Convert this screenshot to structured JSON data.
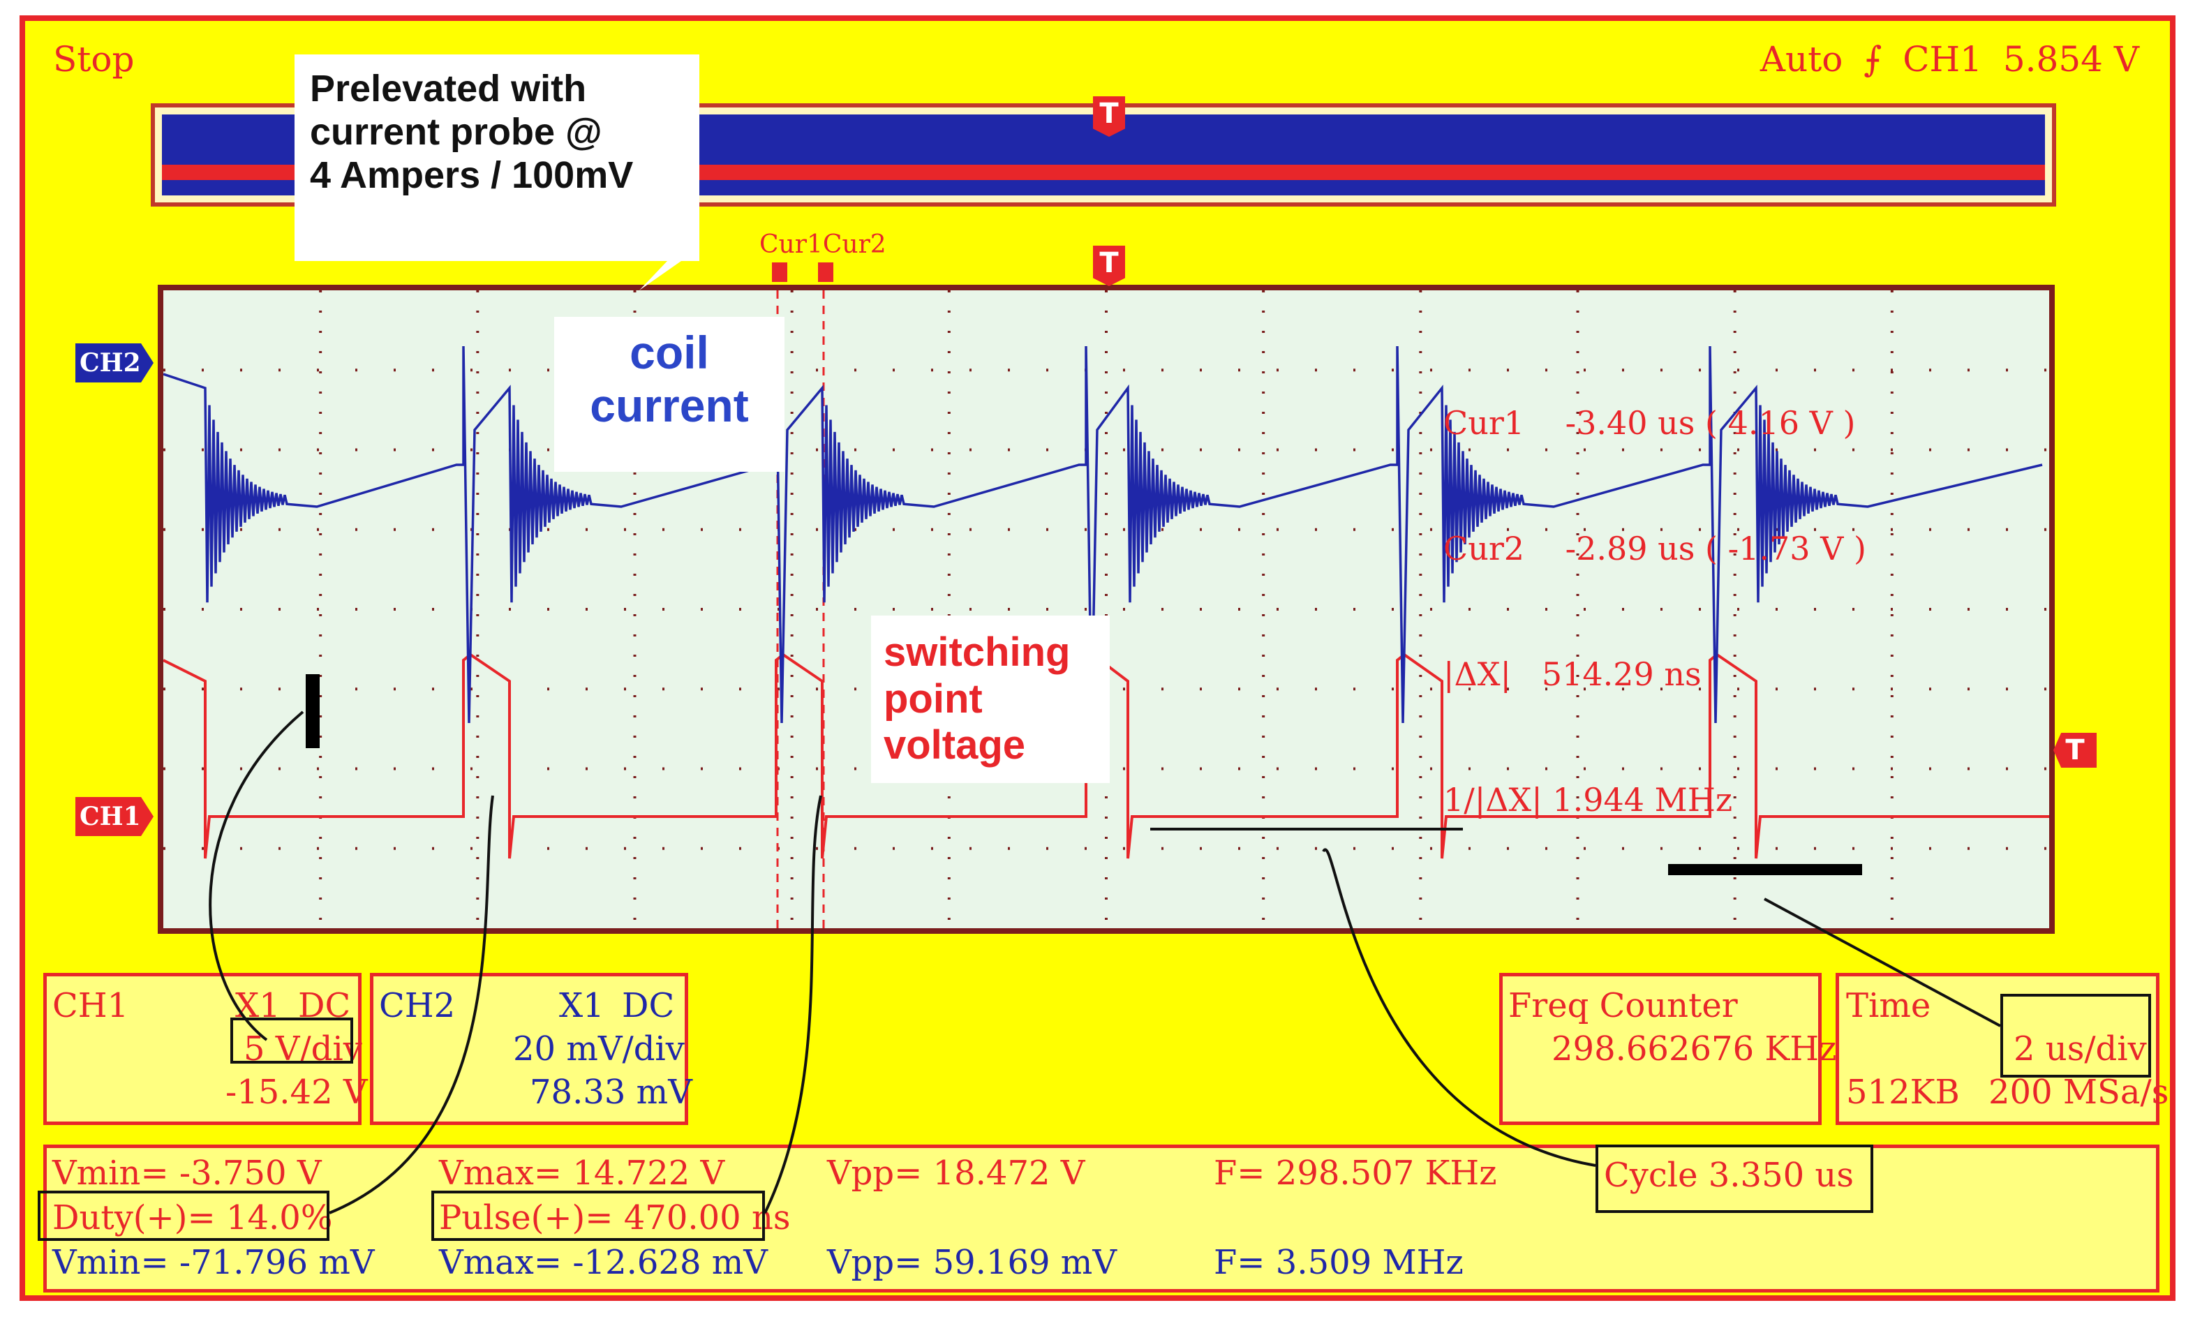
{
  "status": "Stop",
  "trigger": {
    "mode": "Auto",
    "edge_icon": "rising-edge-icon",
    "source": "CH1",
    "level": "5.854 V"
  },
  "channel_tags": {
    "ch1": "CH1",
    "ch2": "CH2"
  },
  "trigger_marker": "T",
  "cursors": {
    "label1": "Cur1",
    "label2": "Cur2",
    "lines": [
      "Cur1    -3.40 us ( 4.16 V )",
      "Cur2    -2.89 us ( -1.73 V )",
      "|ΔX|   514.29 ns",
      "1/|ΔX| 1.944 MHz"
    ]
  },
  "annotations": {
    "probe": "Prelevated with current probe @ 4 Ampers / 100mV",
    "probe_lines": [
      "Prelevated with",
      "current probe @",
      "4 Ampers / 100mV"
    ],
    "coil_lines": [
      "coil",
      "current"
    ],
    "switch_lines": [
      "switching",
      "point",
      "voltage"
    ]
  },
  "ch1_panel": {
    "name": "CH1",
    "probe": "X1",
    "coupling": "DC",
    "scale": "5 V/div",
    "offset": "-15.42 V"
  },
  "ch2_panel": {
    "name": "CH2",
    "probe": "X1",
    "coupling": "DC",
    "scale": "20 mV/div",
    "offset": "78.33 mV"
  },
  "freq_counter": {
    "label": "Freq Counter",
    "value": "298.662676 KHz"
  },
  "time_panel": {
    "label": "Time",
    "scale": "2 us/div",
    "memory": "512KB",
    "sample_rate": "200 MSa/s"
  },
  "measurements": {
    "row1": [
      "Vmin= -3.750 V",
      "Vmax= 14.722 V",
      "Vpp= 18.472 V",
      "F= 298.507 KHz"
    ],
    "row2": [
      "Duty(+)= 14.0%",
      "Pulse(+)= 470.00 ns",
      "",
      ""
    ],
    "row3": [
      "Vmin= -71.796 mV",
      "Vmax= -12.628 mV",
      "Vpp= 59.169 mV",
      "F= 3.509 MHz"
    ],
    "cycle": "Cycle 3.350 us"
  },
  "colors": {
    "background": "#ffff00",
    "frame": "#e8262a",
    "ch1": "#e8262a",
    "ch2": "#1f27a8",
    "screen": "#e9f6e9"
  }
}
